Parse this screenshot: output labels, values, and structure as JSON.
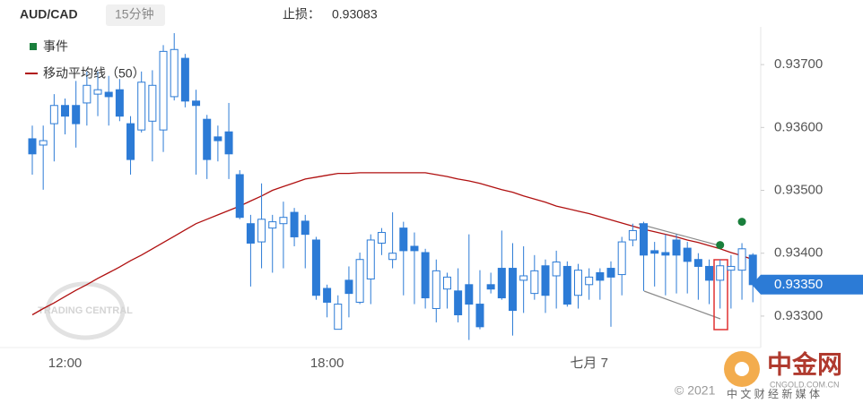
{
  "header": {
    "symbol": "AUD/CAD",
    "interval": "15分钟",
    "stop_label": "止损：",
    "stop_value": "0.93083"
  },
  "footer": {
    "copyright": "© 2021",
    "brand": "中金网",
    "site": "CNGOLD.COM.CN",
    "slogan": "中 文 财 经 新 媒 体"
  },
  "chart_data": {
    "type": "candlestick",
    "watermark": "TRADING CENTRAL",
    "legend": "top-left",
    "up_color": "#ffffff",
    "down_color": "#2c7bd6",
    "wick_color": "#2c7bd6",
    "categories": [
      null,
      null,
      null,
      "12:00",
      null,
      null,
      null,
      null,
      null,
      null,
      null,
      null,
      null,
      null,
      null,
      null,
      null,
      null,
      null,
      null,
      null,
      null,
      null,
      null,
      null,
      null,
      null,
      "18:00",
      null,
      null,
      null,
      null,
      null,
      null,
      null,
      null,
      null,
      null,
      null,
      null,
      null,
      null,
      null,
      null,
      null,
      null,
      null,
      null,
      null,
      null,
      null,
      "七月 7",
      null,
      null,
      null,
      null,
      null,
      null,
      null,
      null,
      null,
      null,
      null,
      null,
      null,
      null,
      null
    ],
    "open": [
      0.93582,
      0.93572,
      0.93606,
      0.93635,
      0.93635,
      0.93639,
      0.93653,
      0.93656,
      0.9366,
      0.93606,
      0.93596,
      0.9361,
      0.93596,
      0.93649,
      0.9371,
      0.93642,
      0.93613,
      0.93585,
      0.93593,
      0.93525,
      0.93447,
      0.93418,
      0.9344,
      0.93447,
      0.93465,
      0.93451,
      0.93421,
      0.93344,
      0.93279,
      0.93357,
      0.93322,
      0.93359,
      0.93416,
      0.9339,
      0.9344,
      0.93411,
      0.93401,
      0.93312,
      0.93343,
      0.9334,
      0.9335,
      0.93319,
      0.9335,
      0.93376,
      0.93376,
      0.93357,
      0.93336,
      0.9338,
      0.93364,
      0.93379,
      0.93333,
      0.9335,
      0.93369,
      0.93376,
      0.93366,
      0.93421,
      0.93447,
      0.93404,
      0.93401,
      0.93421,
      0.93408,
      0.9339,
      0.93379,
      0.93357,
      0.93373,
      0.93373,
      0.93397
    ],
    "high": [
      0.93603,
      0.93603,
      0.93653,
      0.93646,
      0.93674,
      0.93689,
      0.93689,
      0.93682,
      0.93677,
      0.93618,
      0.93689,
      0.93691,
      0.93731,
      0.9375,
      0.93717,
      0.9366,
      0.9362,
      0.93603,
      0.93639,
      0.93532,
      0.93461,
      0.93511,
      0.93461,
      0.93482,
      0.93472,
      0.93461,
      0.93426,
      0.9335,
      0.93333,
      0.93379,
      0.93401,
      0.9343,
      0.9344,
      0.93465,
      0.9345,
      0.93433,
      0.93407,
      0.9339,
      0.93369,
      0.93376,
      0.9343,
      0.93373,
      0.93369,
      0.93436,
      0.93416,
      0.93411,
      0.93397,
      0.9339,
      0.93404,
      0.93387,
      0.93383,
      0.93376,
      0.93376,
      0.93387,
      0.93426,
      0.93447,
      0.9345,
      0.93418,
      0.9343,
      0.9343,
      0.93418,
      0.934,
      0.9339,
      0.9339,
      0.93397,
      0.93416,
      0.934
    ],
    "low": [
      0.93525,
      0.93501,
      0.93546,
      0.93589,
      0.93568,
      0.93603,
      0.93618,
      0.93603,
      0.9361,
      0.93525,
      0.93592,
      0.93546,
      0.93561,
      0.93643,
      0.93632,
      0.93525,
      0.93518,
      0.93546,
      0.93518,
      0.93454,
      0.93347,
      0.93376,
      0.93369,
      0.93376,
      0.93411,
      0.93376,
      0.93326,
      0.93298,
      0.93279,
      0.93298,
      0.93319,
      0.93319,
      0.93397,
      0.93376,
      0.93333,
      0.93319,
      0.93312,
      0.9329,
      0.93312,
      0.9329,
      0.93262,
      0.93279,
      0.93336,
      0.93326,
      0.93269,
      0.93305,
      0.93326,
      0.93305,
      0.93312,
      0.93315,
      0.93312,
      0.93326,
      0.93326,
      0.93283,
      0.93333,
      0.93411,
      0.9334,
      0.93347,
      0.93333,
      0.93336,
      0.93336,
      0.93326,
      0.93319,
      0.93312,
      0.93312,
      0.93326,
      0.93322
    ],
    "close": [
      0.93558,
      0.93579,
      0.93635,
      0.93618,
      0.93606,
      0.93667,
      0.9366,
      0.93649,
      0.93618,
      0.93549,
      0.93672,
      0.93667,
      0.93721,
      0.93724,
      0.93642,
      0.93635,
      0.93549,
      0.93579,
      0.93558,
      0.93457,
      0.93416,
      0.93454,
      0.9345,
      0.93457,
      0.93426,
      0.9343,
      0.93333,
      0.93322,
      0.93319,
      0.93336,
      0.9339,
      0.93421,
      0.93433,
      0.934,
      0.93404,
      0.93404,
      0.93329,
      0.93372,
      0.93362,
      0.93302,
      0.93319,
      0.93283,
      0.93343,
      0.93329,
      0.93309,
      0.93364,
      0.93372,
      0.93333,
      0.93386,
      0.93319,
      0.93373,
      0.93362,
      0.93357,
      0.93362,
      0.93418,
      0.93436,
      0.93397,
      0.934,
      0.93397,
      0.93397,
      0.93387,
      0.93379,
      0.93357,
      0.9338,
      0.93379,
      0.93407,
      0.9335
    ],
    "ma": {
      "name": "移动平均线（50）",
      "color": "#b01010",
      "values": [
        0.93302,
        0.93312,
        0.93321,
        0.93331,
        0.93341,
        0.9335,
        0.9336,
        0.93369,
        0.93378,
        0.93388,
        0.93397,
        0.93407,
        0.93417,
        0.93427,
        0.93437,
        0.93447,
        0.93454,
        0.93461,
        0.93468,
        0.93475,
        0.93483,
        0.93491,
        0.935,
        0.93506,
        0.93512,
        0.93518,
        0.93521,
        0.93524,
        0.93527,
        0.93527,
        0.93528,
        0.93528,
        0.93528,
        0.93528,
        0.93528,
        0.93528,
        0.93528,
        0.93525,
        0.93522,
        0.93518,
        0.93515,
        0.93511,
        0.93506,
        0.93501,
        0.93497,
        0.93491,
        0.93486,
        0.93481,
        0.93475,
        0.93471,
        0.93467,
        0.93463,
        0.93458,
        0.93453,
        0.93448,
        0.93443,
        0.93438,
        0.93434,
        0.9343,
        0.93426,
        0.93421,
        0.93417,
        0.93412,
        0.93407,
        0.93401,
        0.93396,
        0.9339
      ]
    },
    "events": {
      "name": "事件",
      "color": "#1a7f3c",
      "values": [
        null,
        null,
        null,
        null,
        null,
        null,
        null,
        null,
        null,
        null,
        null,
        null,
        null,
        null,
        null,
        null,
        null,
        null,
        null,
        null,
        null,
        null,
        null,
        null,
        null,
        null,
        null,
        null,
        null,
        null,
        null,
        null,
        null,
        null,
        null,
        null,
        null,
        null,
        null,
        null,
        null,
        null,
        null,
        null,
        null,
        null,
        null,
        null,
        null,
        null,
        null,
        null,
        null,
        null,
        null,
        null,
        null,
        null,
        null,
        null,
        null,
        null,
        null,
        0.93413,
        null,
        0.9345,
        null
      ]
    },
    "last_price": 0.9335,
    "last_price_label": "0.93350",
    "last_price_color": "#2c7bd6",
    "ylim": [
      0.9325,
      0.9376
    ],
    "yticks": [
      {
        "value": 0.933,
        "label": "0.93300"
      },
      {
        "value": 0.934,
        "label": "0.93400"
      },
      {
        "value": 0.935,
        "label": "0.93500"
      },
      {
        "value": 0.936,
        "label": "0.93600"
      },
      {
        "value": 0.937,
        "label": "0.93700"
      }
    ]
  }
}
